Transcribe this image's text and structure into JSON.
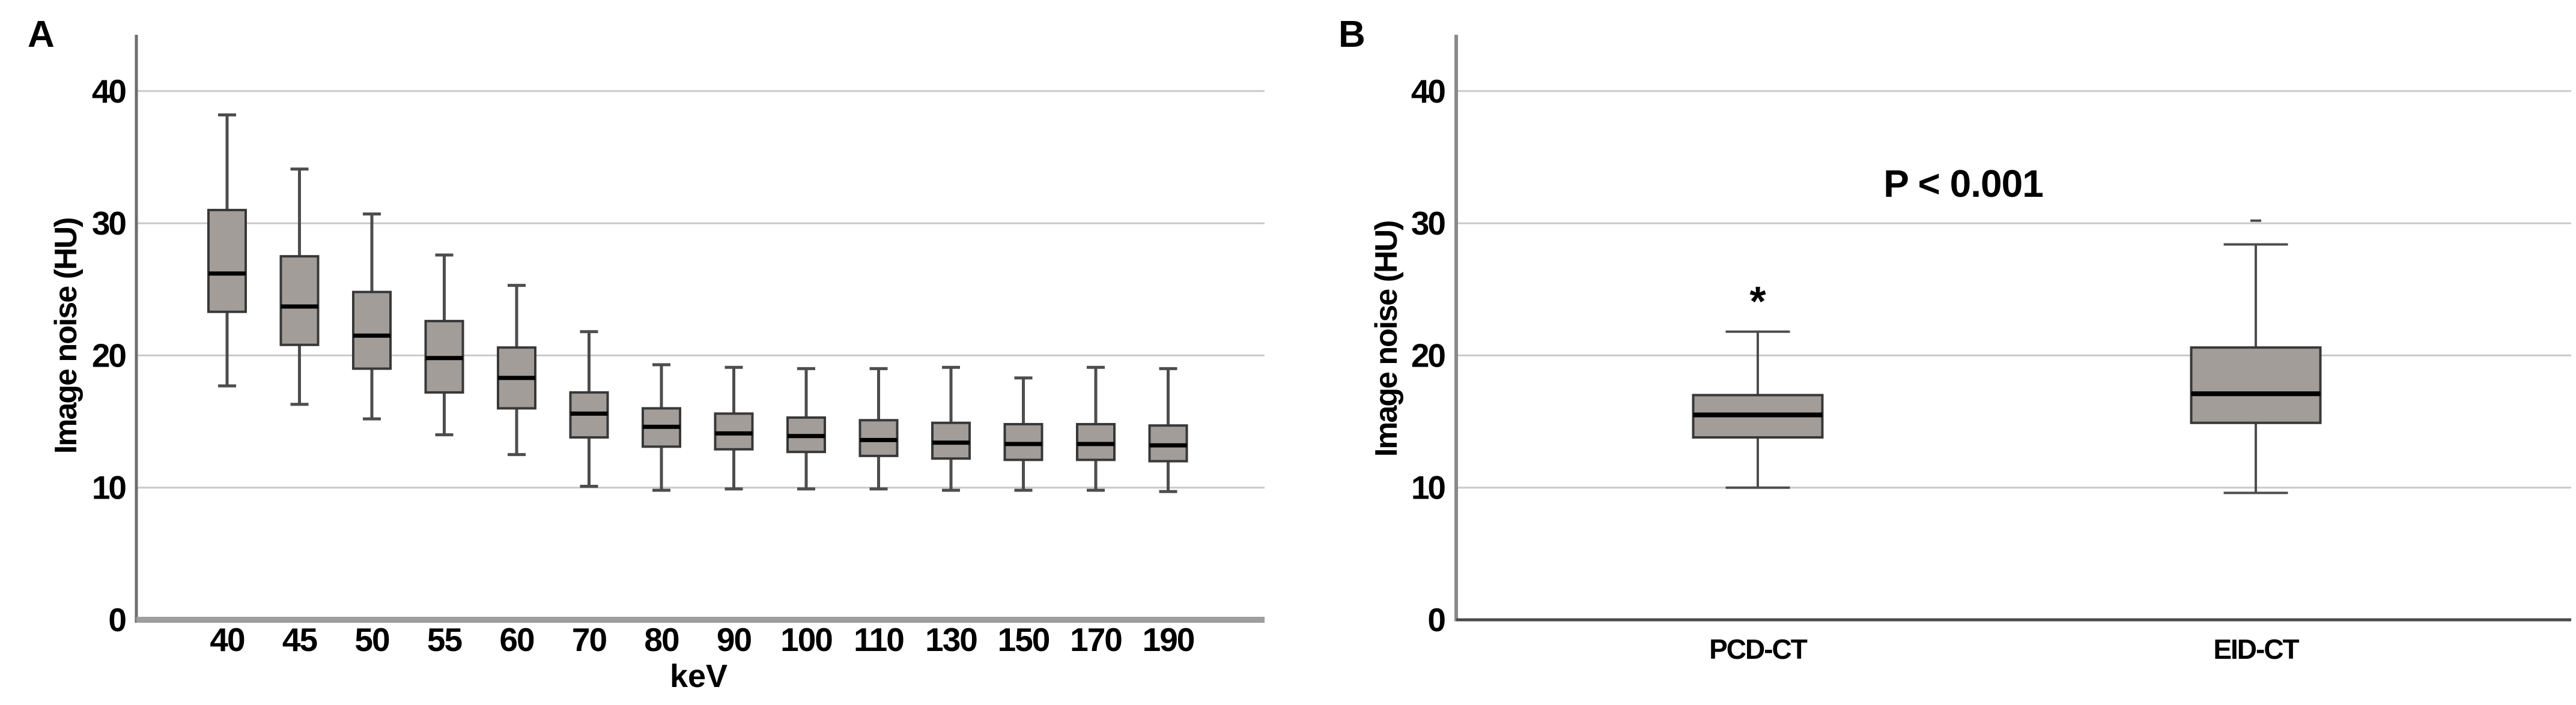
{
  "figure": {
    "background": "#ffffff",
    "description": "Box plots of CT image noise"
  },
  "colors": {
    "box_fill": "#a29d98",
    "box_border": "#383838",
    "median": "#000000",
    "whisker": "#4d4d4d",
    "gridline": "#c9c9c9",
    "axis_a_left": "#6e6e6e",
    "axis_a_bottom": "#9e9e9e",
    "axis_b_left": "#8a8a8a",
    "axis_b_bottom": "#4a4a4a",
    "outlier": "#4a4a4a",
    "text": "#000000",
    "background": "#ffffff"
  },
  "chart_data": [
    {
      "type": "box",
      "panel_label": "A",
      "title": "",
      "xlabel": "keV",
      "ylabel": "Image noise (HU)",
      "ylim": [
        0,
        44
      ],
      "yticks": [
        0,
        10,
        20,
        30,
        40
      ],
      "grid": "horizontal",
      "legend": "none",
      "categories": [
        "40",
        "45",
        "50",
        "55",
        "60",
        "70",
        "80",
        "90",
        "100",
        "110",
        "130",
        "150",
        "170",
        "190"
      ],
      "boxes": [
        {
          "category": "40",
          "min": 17.7,
          "q1": 23.3,
          "median": 26.2,
          "q3": 31.0,
          "max": 38.2
        },
        {
          "category": "45",
          "min": 16.3,
          "q1": 20.8,
          "median": 23.7,
          "q3": 27.5,
          "max": 34.1
        },
        {
          "category": "50",
          "min": 15.2,
          "q1": 19.0,
          "median": 21.5,
          "q3": 24.8,
          "max": 30.7
        },
        {
          "category": "55",
          "min": 14.0,
          "q1": 17.2,
          "median": 19.8,
          "q3": 22.6,
          "max": 27.6
        },
        {
          "category": "60",
          "min": 12.5,
          "q1": 16.0,
          "median": 18.3,
          "q3": 20.6,
          "max": 25.3
        },
        {
          "category": "70",
          "min": 10.1,
          "q1": 13.8,
          "median": 15.6,
          "q3": 17.2,
          "max": 21.8
        },
        {
          "category": "80",
          "min": 9.8,
          "q1": 13.1,
          "median": 14.6,
          "q3": 16.0,
          "max": 19.3
        },
        {
          "category": "90",
          "min": 9.9,
          "q1": 12.9,
          "median": 14.1,
          "q3": 15.6,
          "max": 19.1
        },
        {
          "category": "100",
          "min": 9.9,
          "q1": 12.7,
          "median": 13.9,
          "q3": 15.3,
          "max": 19.0
        },
        {
          "category": "110",
          "min": 9.9,
          "q1": 12.4,
          "median": 13.6,
          "q3": 15.1,
          "max": 19.0
        },
        {
          "category": "130",
          "min": 9.8,
          "q1": 12.2,
          "median": 13.4,
          "q3": 14.9,
          "max": 19.1
        },
        {
          "category": "150",
          "min": 9.8,
          "q1": 12.1,
          "median": 13.3,
          "q3": 14.8,
          "max": 18.3
        },
        {
          "category": "170",
          "min": 9.8,
          "q1": 12.1,
          "median": 13.3,
          "q3": 14.8,
          "max": 19.1
        },
        {
          "category": "190",
          "min": 9.7,
          "q1": 12.0,
          "median": 13.2,
          "q3": 14.7,
          "max": 19.0
        }
      ]
    },
    {
      "type": "box",
      "panel_label": "B",
      "title": "",
      "xlabel": "",
      "ylabel": "Image noise (HU)",
      "ylim": [
        0,
        44
      ],
      "yticks": [
        0,
        10,
        20,
        30,
        40
      ],
      "grid": "horizontal",
      "legend": "none",
      "categories": [
        "PCD-CT",
        "EID-CT"
      ],
      "boxes": [
        {
          "category": "PCD-CT",
          "min": 10.0,
          "q1": 13.8,
          "median": 15.5,
          "q3": 17.0,
          "max": 21.8,
          "annotation": "*",
          "annotation_y": 24.6
        },
        {
          "category": "EID-CT",
          "min": 9.6,
          "q1": 14.9,
          "median": 17.1,
          "q3": 20.6,
          "max": 28.4,
          "outliers": [
            30.2
          ]
        }
      ],
      "annotations": [
        {
          "text": "P < 0.001",
          "y": 33.0
        }
      ]
    }
  ]
}
